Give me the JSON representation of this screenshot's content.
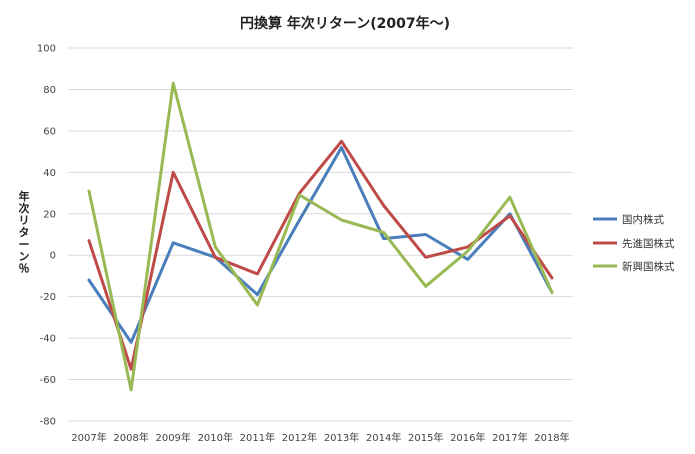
{
  "chart_data": {
    "type": "line",
    "title": "円換算 年次リターン(2007年～)",
    "xlabel": "",
    "ylabel": "年次リターン％",
    "categories": [
      "2007年",
      "2008年",
      "2009年",
      "2010年",
      "2011年",
      "2012年",
      "2013年",
      "2014年",
      "2015年",
      "2016年",
      "2017年",
      "2018年"
    ],
    "ylim": [
      -80,
      100
    ],
    "yticks": [
      -80,
      -60,
      -40,
      -20,
      0,
      20,
      40,
      60,
      80,
      100
    ],
    "grid": true,
    "legend_position": "right",
    "series": [
      {
        "name": "国内株式",
        "color": "#4a7ebb",
        "values": [
          -12,
          -42,
          6,
          -1,
          -19,
          17,
          52,
          8,
          10,
          -2,
          20,
          -18
        ]
      },
      {
        "name": "先進国株式",
        "color": "#be4b48",
        "values": [
          7,
          -55,
          40,
          -1,
          -9,
          30,
          55,
          24,
          -1,
          4,
          19,
          -11
        ]
      },
      {
        "name": "新興国株式",
        "color": "#98b954",
        "values": [
          31,
          -65,
          83,
          4,
          -24,
          29,
          17,
          11,
          -15,
          2,
          28,
          -18
        ]
      }
    ]
  }
}
